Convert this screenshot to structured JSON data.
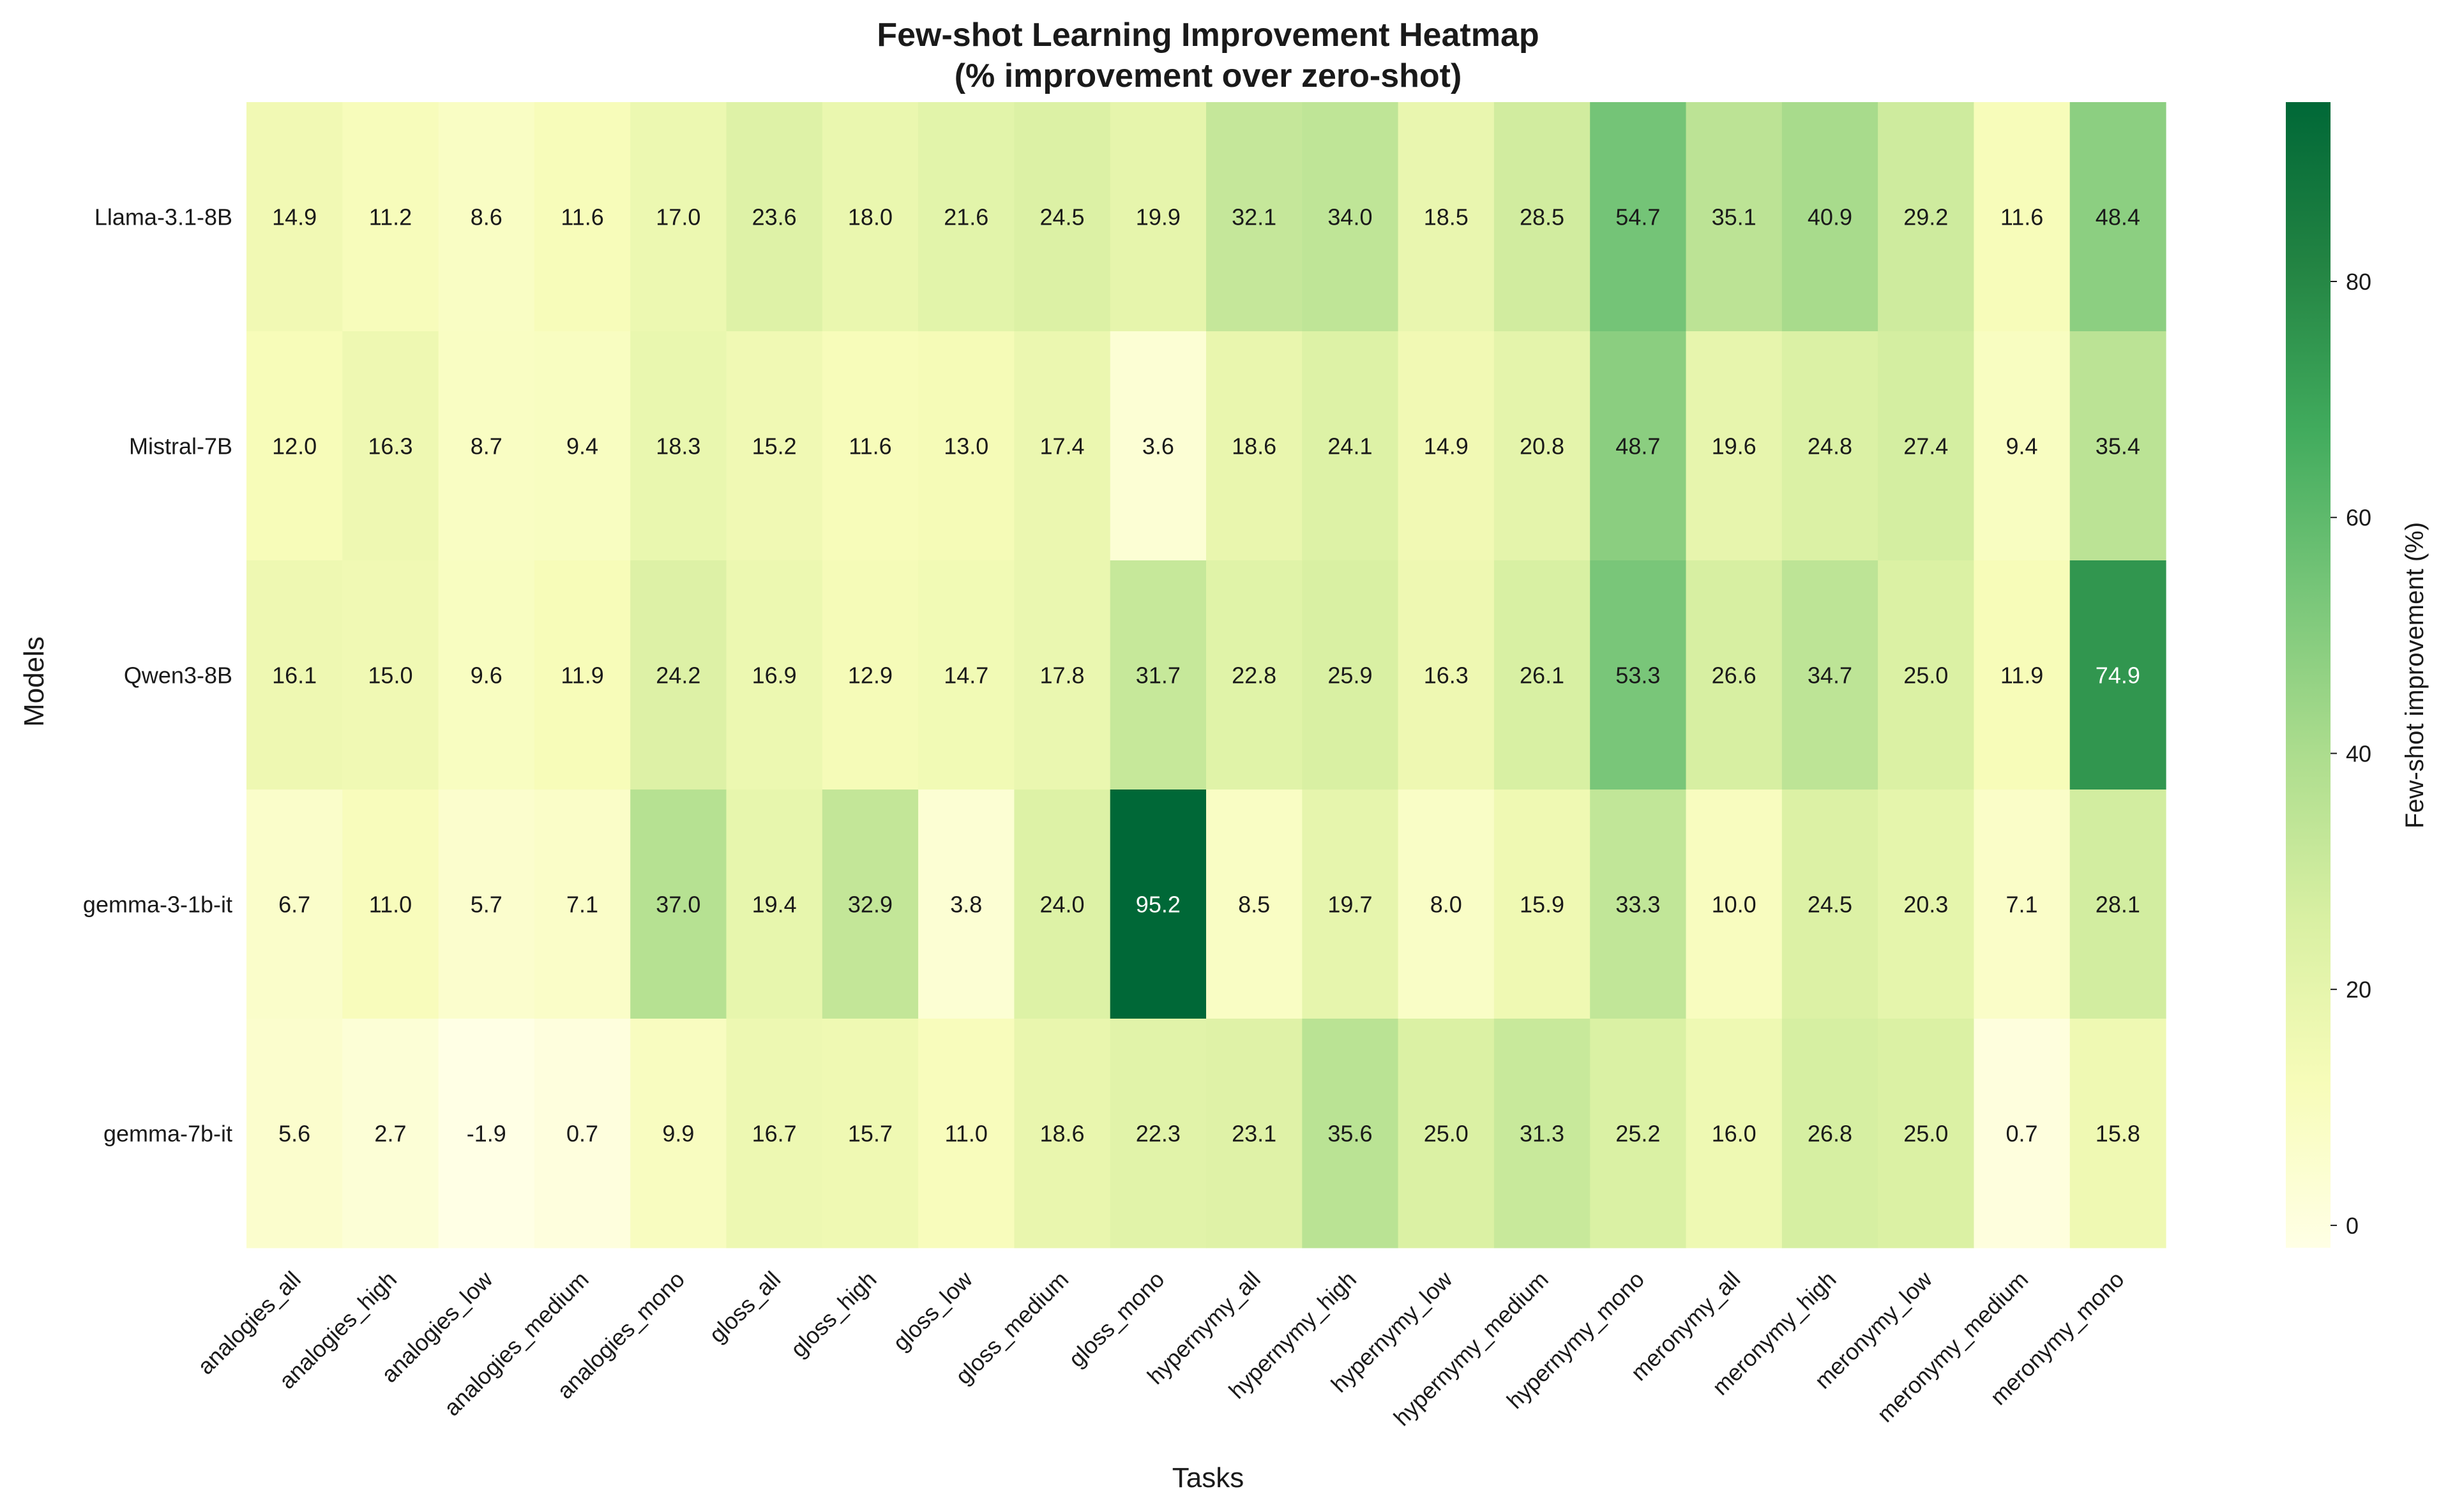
{
  "chart_data": {
    "type": "heatmap",
    "title_lines": [
      "Few-shot Learning Improvement Heatmap",
      "(% improvement over zero-shot)"
    ],
    "xlabel": "Tasks",
    "ylabel": "Models",
    "colorbar_label": "Few-shot improvement (%)",
    "colorbar_ticks": [
      0,
      20,
      40,
      60,
      80
    ],
    "value_range": [
      -1.9,
      95.2
    ],
    "colormap": [
      "#ffffe5",
      "#f7fcb9",
      "#d9f0a3",
      "#addd8e",
      "#78c679",
      "#41ab5d",
      "#238443",
      "#006837"
    ],
    "rows": [
      "Llama-3.1-8B",
      "Mistral-7B",
      "Qwen3-8B",
      "gemma-3-1b-it",
      "gemma-7b-it"
    ],
    "columns": [
      "analogies_all",
      "analogies_high",
      "analogies_low",
      "analogies_medium",
      "analogies_mono",
      "gloss_all",
      "gloss_high",
      "gloss_low",
      "gloss_medium",
      "gloss_mono",
      "hypernymy_all",
      "hypernymy_high",
      "hypernymy_low",
      "hypernymy_medium",
      "hypernymy_mono",
      "meronymy_all",
      "meronymy_high",
      "meronymy_low",
      "meronymy_medium",
      "meronymy_mono"
    ],
    "values": [
      [
        14.9,
        11.2,
        8.6,
        11.6,
        17.0,
        23.6,
        18.0,
        21.6,
        24.5,
        19.9,
        32.1,
        34.0,
        18.5,
        28.5,
        54.7,
        35.1,
        40.9,
        29.2,
        11.6,
        48.4
      ],
      [
        12.0,
        16.3,
        8.7,
        9.4,
        18.3,
        15.2,
        11.6,
        13.0,
        17.4,
        3.6,
        18.6,
        24.1,
        14.9,
        20.8,
        48.7,
        19.6,
        24.8,
        27.4,
        9.4,
        35.4
      ],
      [
        16.1,
        15.0,
        9.6,
        11.9,
        24.2,
        16.9,
        12.9,
        14.7,
        17.8,
        31.7,
        22.8,
        25.9,
        16.3,
        26.1,
        53.3,
        26.6,
        34.7,
        25.0,
        11.9,
        74.9
      ],
      [
        6.7,
        11.0,
        5.7,
        7.1,
        37.0,
        19.4,
        32.9,
        3.8,
        24.0,
        95.2,
        8.5,
        19.7,
        8.0,
        15.9,
        33.3,
        10.0,
        24.5,
        20.3,
        7.1,
        28.1
      ],
      [
        5.6,
        2.7,
        -1.9,
        0.7,
        9.9,
        16.7,
        15.7,
        11.0,
        18.6,
        22.3,
        23.1,
        35.6,
        25.0,
        31.3,
        25.2,
        16.0,
        26.8,
        25.0,
        0.7,
        15.8
      ]
    ]
  }
}
